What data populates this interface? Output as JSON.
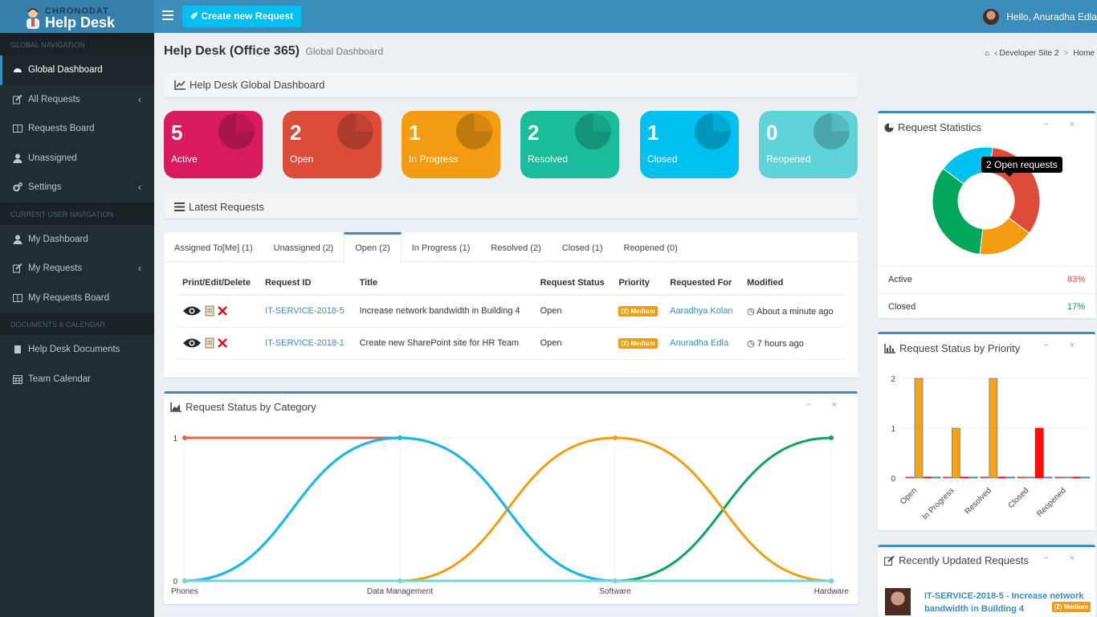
{
  "app": {
    "brand_small": "CHRONODAT",
    "brand_big": "Help Desk",
    "create_button": "Create new Request",
    "greeting": "Hello, Anuradha Edla"
  },
  "sidebar": {
    "sections": [
      {
        "header": "GLOBAL NAVIGATION",
        "items": [
          {
            "label": "Global Dashboard",
            "icon": "dashboard-icon",
            "active": true
          },
          {
            "label": "All Requests",
            "icon": "edit-icon",
            "chevron": true
          },
          {
            "label": "Requests Board",
            "icon": "columns-icon"
          },
          {
            "label": "Unassigned",
            "icon": "user-icon"
          },
          {
            "label": "Settings",
            "icon": "gears-icon",
            "chevron": true
          }
        ]
      },
      {
        "header": "CURRENT USER NAVIGATION",
        "items": [
          {
            "label": "My Dashboard",
            "icon": "user-icon"
          },
          {
            "label": "My Requests",
            "icon": "edit-icon",
            "chevron": true
          },
          {
            "label": "My Requests Board",
            "icon": "columns-icon"
          }
        ]
      },
      {
        "header": "DOCUMENTS & CALENDAR",
        "items": [
          {
            "label": "Help Desk Documents",
            "icon": "book-icon"
          },
          {
            "label": "Team Calendar",
            "icon": "calendar-icon"
          }
        ]
      }
    ]
  },
  "page": {
    "title": "Help Desk (Office 365)",
    "subtitle": "Global Dashboard",
    "breadcrumb_site": "Developer Site 2",
    "breadcrumb_home": "Home",
    "dashboard_header": "Help Desk Global Dashboard",
    "latest_header": "Latest Requests"
  },
  "tiles": [
    {
      "count": "5",
      "label": "Active",
      "color": "#d81b60"
    },
    {
      "count": "2",
      "label": "Open",
      "color": "#dd4b39"
    },
    {
      "count": "1",
      "label": "In Progress",
      "color": "#f39c12"
    },
    {
      "count": "2",
      "label": "Resolved",
      "color": "#1abc9c"
    },
    {
      "count": "1",
      "label": "Closed",
      "color": "#00c0ef"
    },
    {
      "count": "0",
      "label": "Reopened",
      "color": "#5fd4d8"
    }
  ],
  "requests": {
    "tabs": [
      "Assigned To[Me] (1)",
      "Unassigned (2)",
      "Open (2)",
      "In Progress (1)",
      "Resolved (2)",
      "Closed (1)",
      "Reopened (0)"
    ],
    "active_tab": 2,
    "columns": [
      "Print/Edit/Delete",
      "Request ID",
      "Title",
      "Request Status",
      "Priority",
      "Requested For",
      "Modified"
    ],
    "rows": [
      {
        "id": "IT-SERVICE-2018-5",
        "title": "Increase network bandwidth in Building 4",
        "status": "Open",
        "priority": "(2) Medium",
        "requested_for": "Aaradhya Kolan",
        "modified": "About a minute ago"
      },
      {
        "id": "IT-SERVICE-2018-1",
        "title": "Create new SharePoint site for HR Team",
        "status": "Open",
        "priority": "(2) Medium",
        "requested_for": "Anuradha Edla",
        "modified": "7 hours ago"
      }
    ]
  },
  "request_stats": {
    "title": "Request Statistics",
    "tooltip": "2 Open requests",
    "rows": [
      {
        "label": "Active",
        "value": "83%",
        "color": "#dd4b39"
      },
      {
        "label": "Closed",
        "value": "17%",
        "color": "#00a65a"
      }
    ]
  },
  "priority_panel": {
    "title": "Request Status by Priority"
  },
  "category_panel": {
    "title": "Request Status by Category"
  },
  "recent_panel": {
    "title": "Recently Updated Requests",
    "item_title": "IT-SERVICE-2018-5 - Increase network bandwidth in Building 4",
    "item_priority": "(2) Medium"
  },
  "chart_data": [
    {
      "type": "pie",
      "title": "Request Statistics",
      "labels": [
        "Open",
        "In Progress",
        "Resolved",
        "Closed"
      ],
      "values": [
        2,
        1,
        2,
        1
      ],
      "colors": [
        "#dd4b39",
        "#f39c12",
        "#00a65a",
        "#00c0ef"
      ],
      "donut": true
    },
    {
      "type": "bar",
      "title": "Request Status by Priority",
      "categories": [
        "Open",
        "In Progress",
        "Resolved",
        "Closed",
        "Reopened"
      ],
      "series": [
        {
          "values": [
            0,
            0,
            0,
            0,
            0
          ],
          "color": "#dd4b39"
        },
        {
          "values": [
            2,
            1,
            2,
            0,
            0
          ],
          "color": "#f39c12"
        },
        {
          "values": [
            0,
            0,
            0,
            1,
            0
          ],
          "color": "#ff0000"
        },
        {
          "values": [
            0,
            0,
            0,
            0,
            0
          ],
          "color": "#3c8dbc"
        }
      ],
      "yticks": [
        0,
        1,
        2
      ],
      "ylim": [
        0,
        2
      ]
    },
    {
      "type": "line",
      "title": "Request Status by Category",
      "categories": [
        "Phones",
        "Data Management",
        "Software",
        "Hardware"
      ],
      "series": [
        {
          "values": [
            1,
            1,
            0,
            0
          ],
          "color": "#e8604c"
        },
        {
          "values": [
            0,
            1,
            0,
            1
          ],
          "color": "#0ea35a"
        },
        {
          "values": [
            0,
            0,
            1,
            0
          ],
          "color": "#f39c12"
        },
        {
          "values": [
            0,
            1,
            0,
            0
          ],
          "color": "#1cb8e8"
        },
        {
          "values": [
            0,
            0,
            0,
            0
          ],
          "color": "#6ed6dc"
        }
      ],
      "yticks": [
        0,
        1
      ],
      "ylim": [
        0,
        1
      ]
    }
  ]
}
